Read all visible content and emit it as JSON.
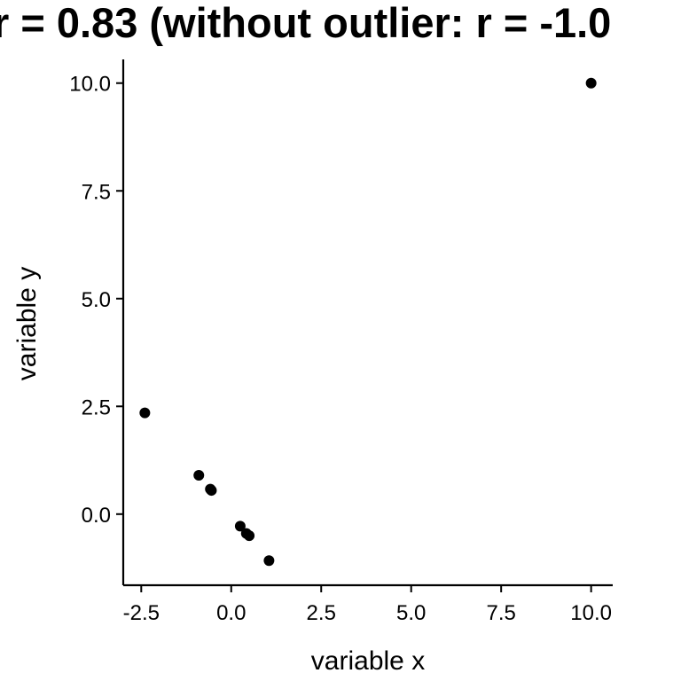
{
  "chart_data": {
    "type": "scatter",
    "title": "r = 0.83 (without outlier: r = -1.0",
    "xlabel": "variable x",
    "ylabel": "variable y",
    "xlim": [
      -3.0,
      10.6
    ],
    "ylim": [
      -1.65,
      10.55
    ],
    "x_ticks": [
      "-2.5",
      "0.0",
      "2.5",
      "5.0",
      "7.5",
      "10.0"
    ],
    "y_ticks": [
      "0.0",
      "2.5",
      "5.0",
      "7.5",
      "10.0"
    ],
    "grid": false,
    "legend": "none",
    "points": [
      {
        "x": -2.4,
        "y": 2.35
      },
      {
        "x": -0.9,
        "y": 0.9
      },
      {
        "x": -0.58,
        "y": 0.58
      },
      {
        "x": -0.55,
        "y": 0.55
      },
      {
        "x": 0.25,
        "y": -0.28
      },
      {
        "x": 0.42,
        "y": -0.45
      },
      {
        "x": 0.5,
        "y": -0.5
      },
      {
        "x": 1.05,
        "y": -1.08
      },
      {
        "x": 10.0,
        "y": 10.0
      }
    ],
    "colors": {
      "point": "#000000",
      "axis": "#000000"
    }
  }
}
